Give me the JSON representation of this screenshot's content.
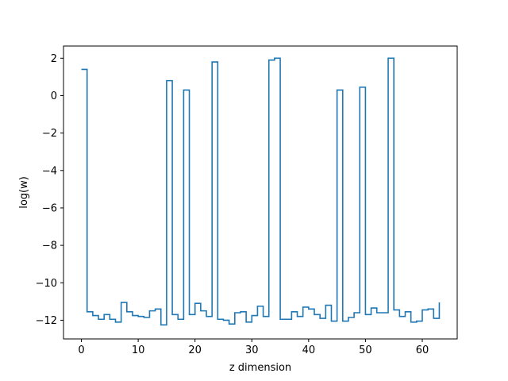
{
  "chart_data": {
    "type": "line",
    "drawstyle": "steps-post",
    "title": "",
    "xlabel": "z dimension",
    "ylabel": "log(w)",
    "xlim": [
      -3.15,
      66.15
    ],
    "ylim": [
      -13.0,
      2.65
    ],
    "xticks": [
      0,
      10,
      20,
      30,
      40,
      50,
      60
    ],
    "yticks": [
      2,
      0,
      -2,
      -4,
      -6,
      -8,
      -10,
      -12
    ],
    "ytick_labels": [
      "2",
      "0",
      "−2",
      "−4",
      "−6",
      "−8",
      "−10",
      "−12"
    ],
    "grid": false,
    "line_color": "#1f77b4",
    "series": [
      {
        "x": [
          0,
          1,
          2,
          3,
          4,
          5,
          6,
          7,
          8,
          9,
          10,
          11,
          12,
          13,
          14,
          15,
          16,
          17,
          18,
          19,
          20,
          21,
          22,
          23,
          24,
          25,
          26,
          27,
          28,
          29,
          30,
          31,
          32,
          33,
          34,
          35,
          36,
          37,
          38,
          39,
          40,
          41,
          42,
          43,
          44,
          45,
          46,
          47,
          48,
          49,
          50,
          51,
          52,
          53,
          54,
          55,
          56,
          57,
          58,
          59,
          60,
          61,
          62,
          63
        ],
        "values": [
          1.4,
          -11.55,
          -11.75,
          -11.95,
          -11.7,
          -11.95,
          -12.1,
          -11.05,
          -11.55,
          -11.75,
          -11.8,
          -11.85,
          -11.5,
          -11.4,
          -12.25,
          0.8,
          -11.7,
          -11.95,
          0.3,
          -11.7,
          -11.1,
          -11.5,
          -11.8,
          1.8,
          -11.95,
          -12.0,
          -12.2,
          -11.6,
          -11.55,
          -12.1,
          -11.75,
          -11.25,
          -11.8,
          1.9,
          2.0,
          -11.95,
          -11.95,
          -11.55,
          -11.8,
          -11.3,
          -11.4,
          -11.7,
          -11.9,
          -11.2,
          -12.05,
          0.3,
          -12.05,
          -11.85,
          -11.6,
          0.45,
          -11.7,
          -11.35,
          -11.6,
          -11.6,
          2.0,
          -11.45,
          -11.8,
          -11.55,
          -12.1,
          -12.05,
          -11.45,
          -11.4,
          -11.9,
          -11.05
        ]
      }
    ]
  }
}
